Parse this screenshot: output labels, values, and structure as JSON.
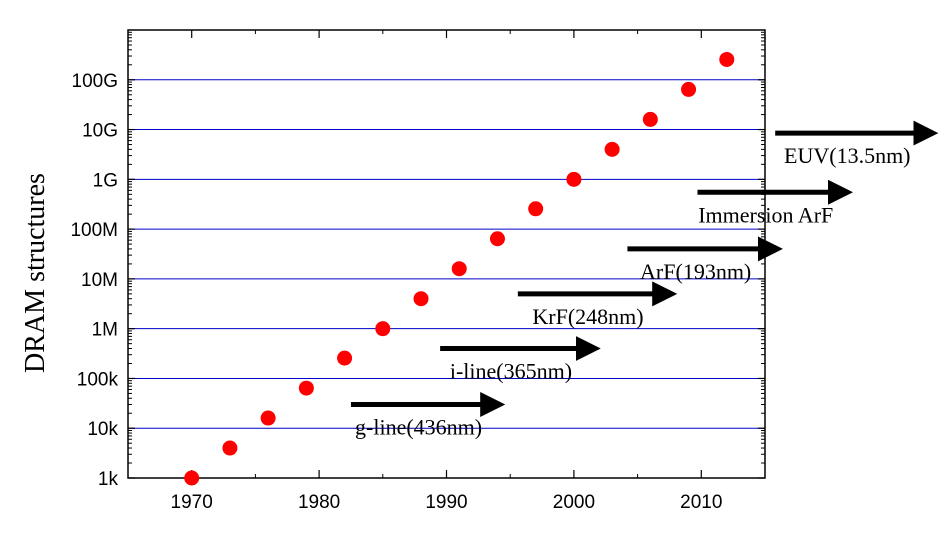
{
  "chart_data": {
    "type": "scatter",
    "title": "",
    "xlabel": "",
    "ylabel": "DRAM structures",
    "yscale": "log",
    "xlim": [
      1965,
      2015
    ],
    "ylim": [
      1000,
      1000000000000
    ],
    "x_ticks": [
      "1970",
      "1980",
      "1990",
      "2000",
      "2010"
    ],
    "x_tick_values": [
      1970,
      1980,
      1990,
      2000,
      2010
    ],
    "y_ticks": [
      "1k",
      "10k",
      "100k",
      "1M",
      "10M",
      "100M",
      "1G",
      "10G",
      "100G"
    ],
    "y_tick_values": [
      1000,
      10000,
      100000,
      1000000,
      10000000,
      100000000,
      1000000000,
      10000000000,
      100000000000
    ],
    "grid": "horizontal",
    "grid_color": "#0000cc",
    "point_color": "#ff0000",
    "x": [
      1970,
      1973,
      1976,
      1979,
      1982,
      1985,
      1988,
      1991,
      1994,
      1997,
      2000,
      2003,
      2006,
      2009,
      2012
    ],
    "values": [
      1000,
      4000,
      16000,
      64000,
      256000,
      1000000,
      4000000,
      16000000,
      64000000,
      256000000,
      1000000000,
      4000000000,
      16000000000,
      64000000000,
      256000000000
    ],
    "annotations": [
      {
        "label": "g-line(436nm)",
        "x_start": 1982.5,
        "x_end": 1995.0,
        "y": 30000
      },
      {
        "label": "i-line(365nm)",
        "x_start": 1989.5,
        "x_end": 2002.5,
        "y": 400000
      },
      {
        "label": "KrF(248nm)",
        "x_start": 1995.6,
        "x_end": 2008.5,
        "y": 5000000
      },
      {
        "label": "ArF(193nm)",
        "x_start": 2004.2,
        "x_end": 2016.8,
        "y": 40000000
      },
      {
        "label": "Immersion ArF",
        "x_start": 2009.7,
        "x_end": 2022.3,
        "y": 550000000
      },
      {
        "label": "EUV(13.5nm)",
        "x_start": 2015.8,
        "x_end": 2029.0,
        "y": 8500000000
      }
    ]
  }
}
